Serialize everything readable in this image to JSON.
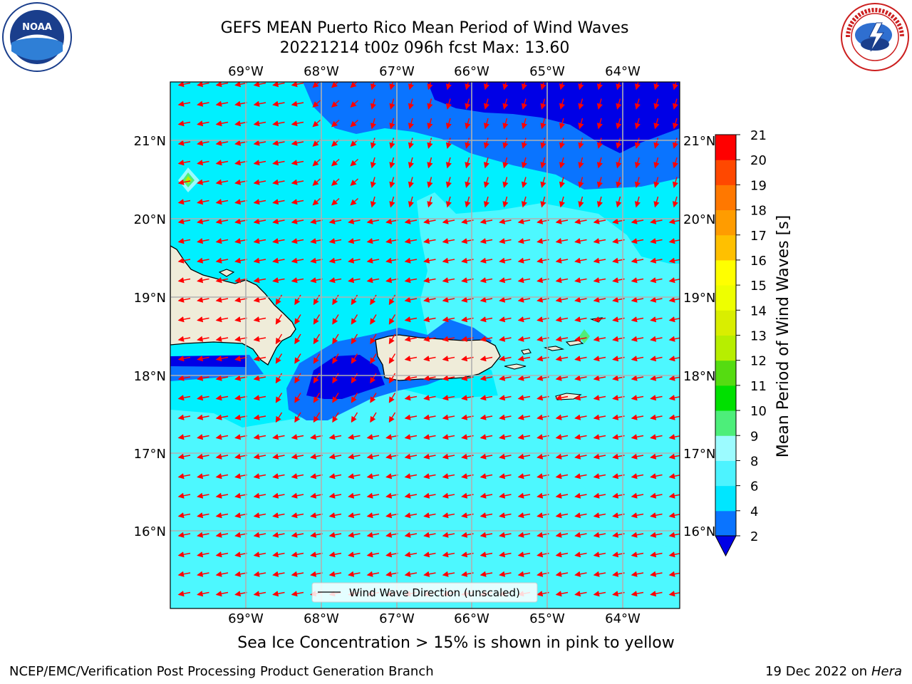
{
  "header": {
    "title_line1": "GEFS MEAN Puerto Rico Mean Period of Wind Waves",
    "title_line2": "20221214 t00z 096h fcst   Max: 13.60"
  },
  "logos": {
    "left": "noaa-logo",
    "right": "nws-logo"
  },
  "map": {
    "lon_labels": [
      "69°W",
      "68°W",
      "67°W",
      "66°W",
      "65°W",
      "64°W"
    ],
    "lat_labels": [
      "21°N",
      "20°N",
      "19°N",
      "18°N",
      "17°N",
      "16°N"
    ],
    "colors": {
      "land": "#efecd9",
      "arrows": "#ff0000",
      "gridlines": "#b0b0b0"
    }
  },
  "legend": {
    "label": "Wind Wave Direction (unscaled)"
  },
  "colorbar": {
    "label": "Mean Period of Wind Waves [s]",
    "ticks": [
      "2",
      "4",
      "6",
      "8",
      "9",
      "10",
      "11",
      "12",
      "13",
      "14",
      "15",
      "16",
      "17",
      "18",
      "19",
      "20",
      "21"
    ],
    "colors": [
      "#0000e6",
      "#0a74ff",
      "#00e6ff",
      "#4df3ff",
      "#9cfbff",
      "#4dee7a",
      "#00e000",
      "#55dc11",
      "#b7ee00",
      "#d9ee00",
      "#eeff00",
      "#ffff00",
      "#ffc000",
      "#ff9c00",
      "#ff7800",
      "#ff4800",
      "#ff0000"
    ]
  },
  "footer": {
    "subtitle": "Sea Ice Concentration > 15% is shown in pink to yellow",
    "left": "NCEP/EMC/Verification Post Processing Product Generation Branch",
    "right_date": "19 Dec 2022 on",
    "right_host": "Hera"
  }
}
